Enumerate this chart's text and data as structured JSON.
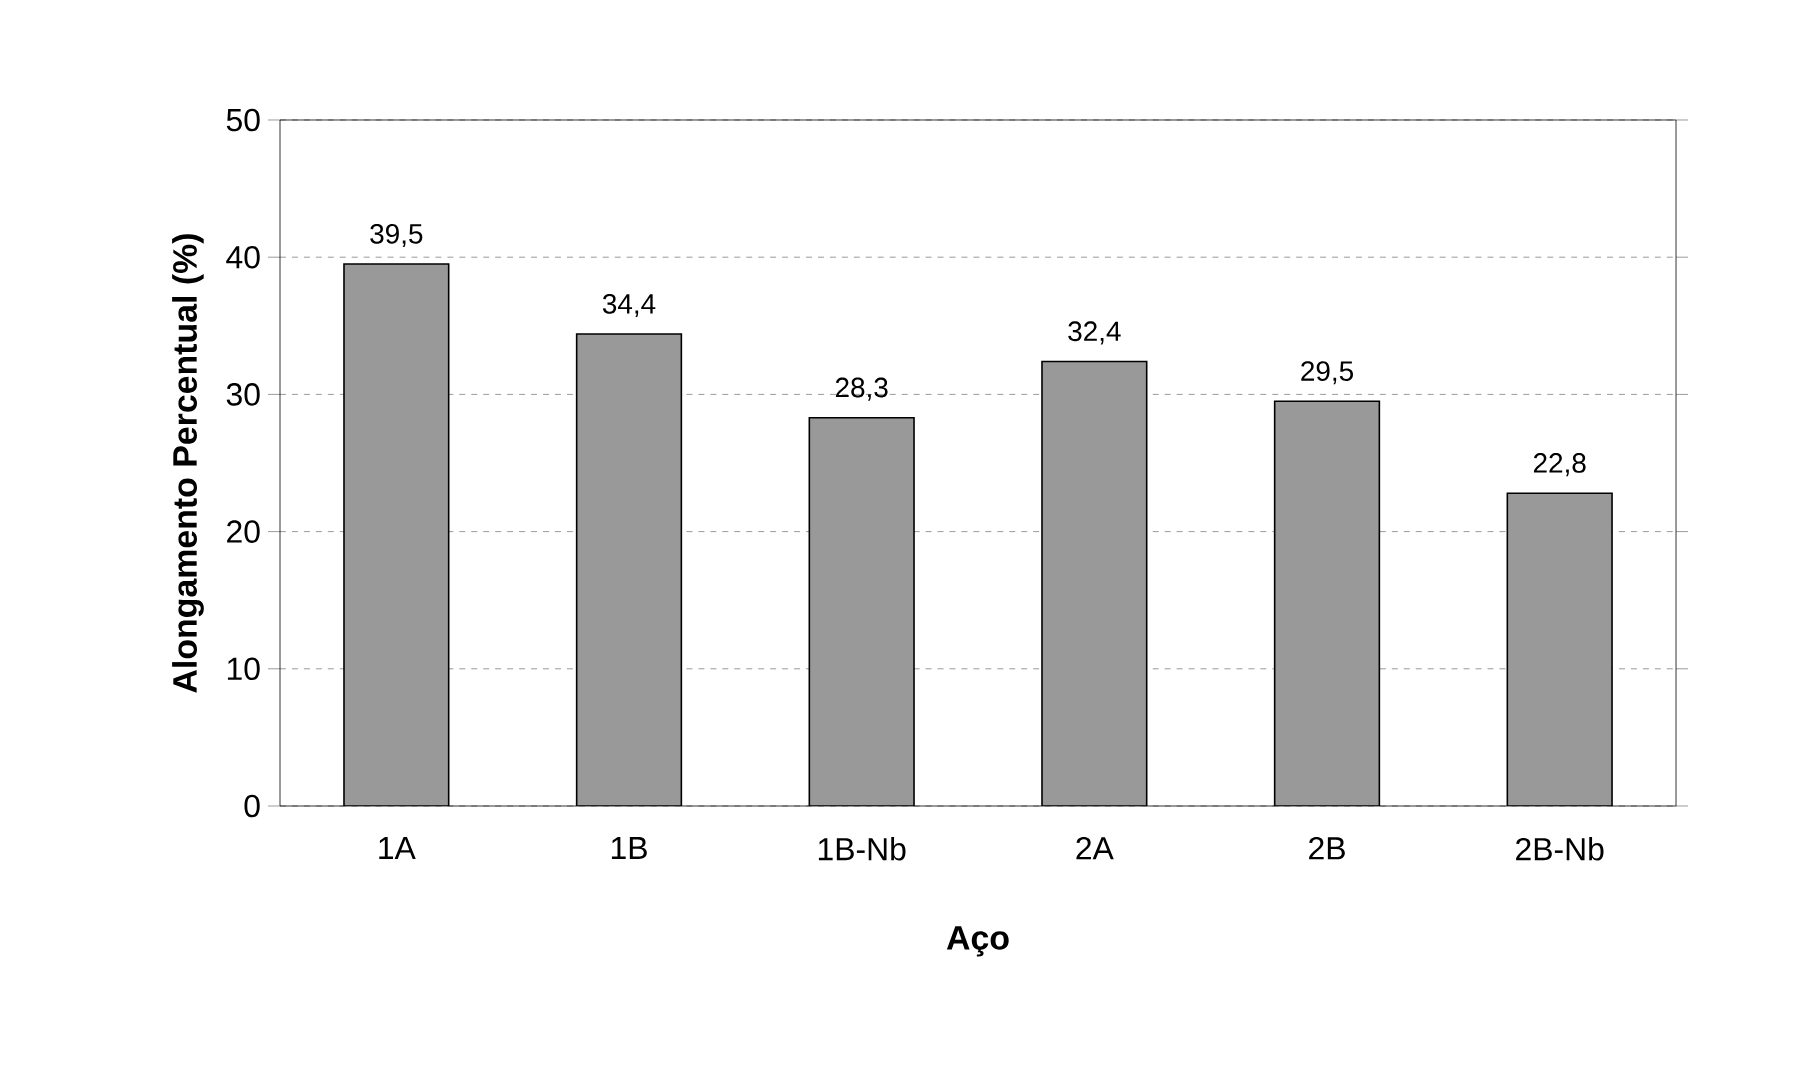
{
  "chart_data": {
    "type": "bar",
    "xlabel": "Aço",
    "ylabel": "Alongamento Percentual (%)",
    "categories": [
      "1A",
      "1B",
      "1B-Nb",
      "2A",
      "2B",
      "2B-Nb"
    ],
    "values": [
      39.5,
      34.4,
      28.3,
      32.4,
      29.5,
      22.8
    ],
    "value_labels": [
      "39,5",
      "34,4",
      "28,3",
      "32,4",
      "29,5",
      "22,8"
    ],
    "color": "#999999",
    "ylim": [
      0,
      50
    ],
    "yticks": [
      0,
      10,
      20,
      30,
      40,
      50
    ],
    "grid": "y"
  }
}
